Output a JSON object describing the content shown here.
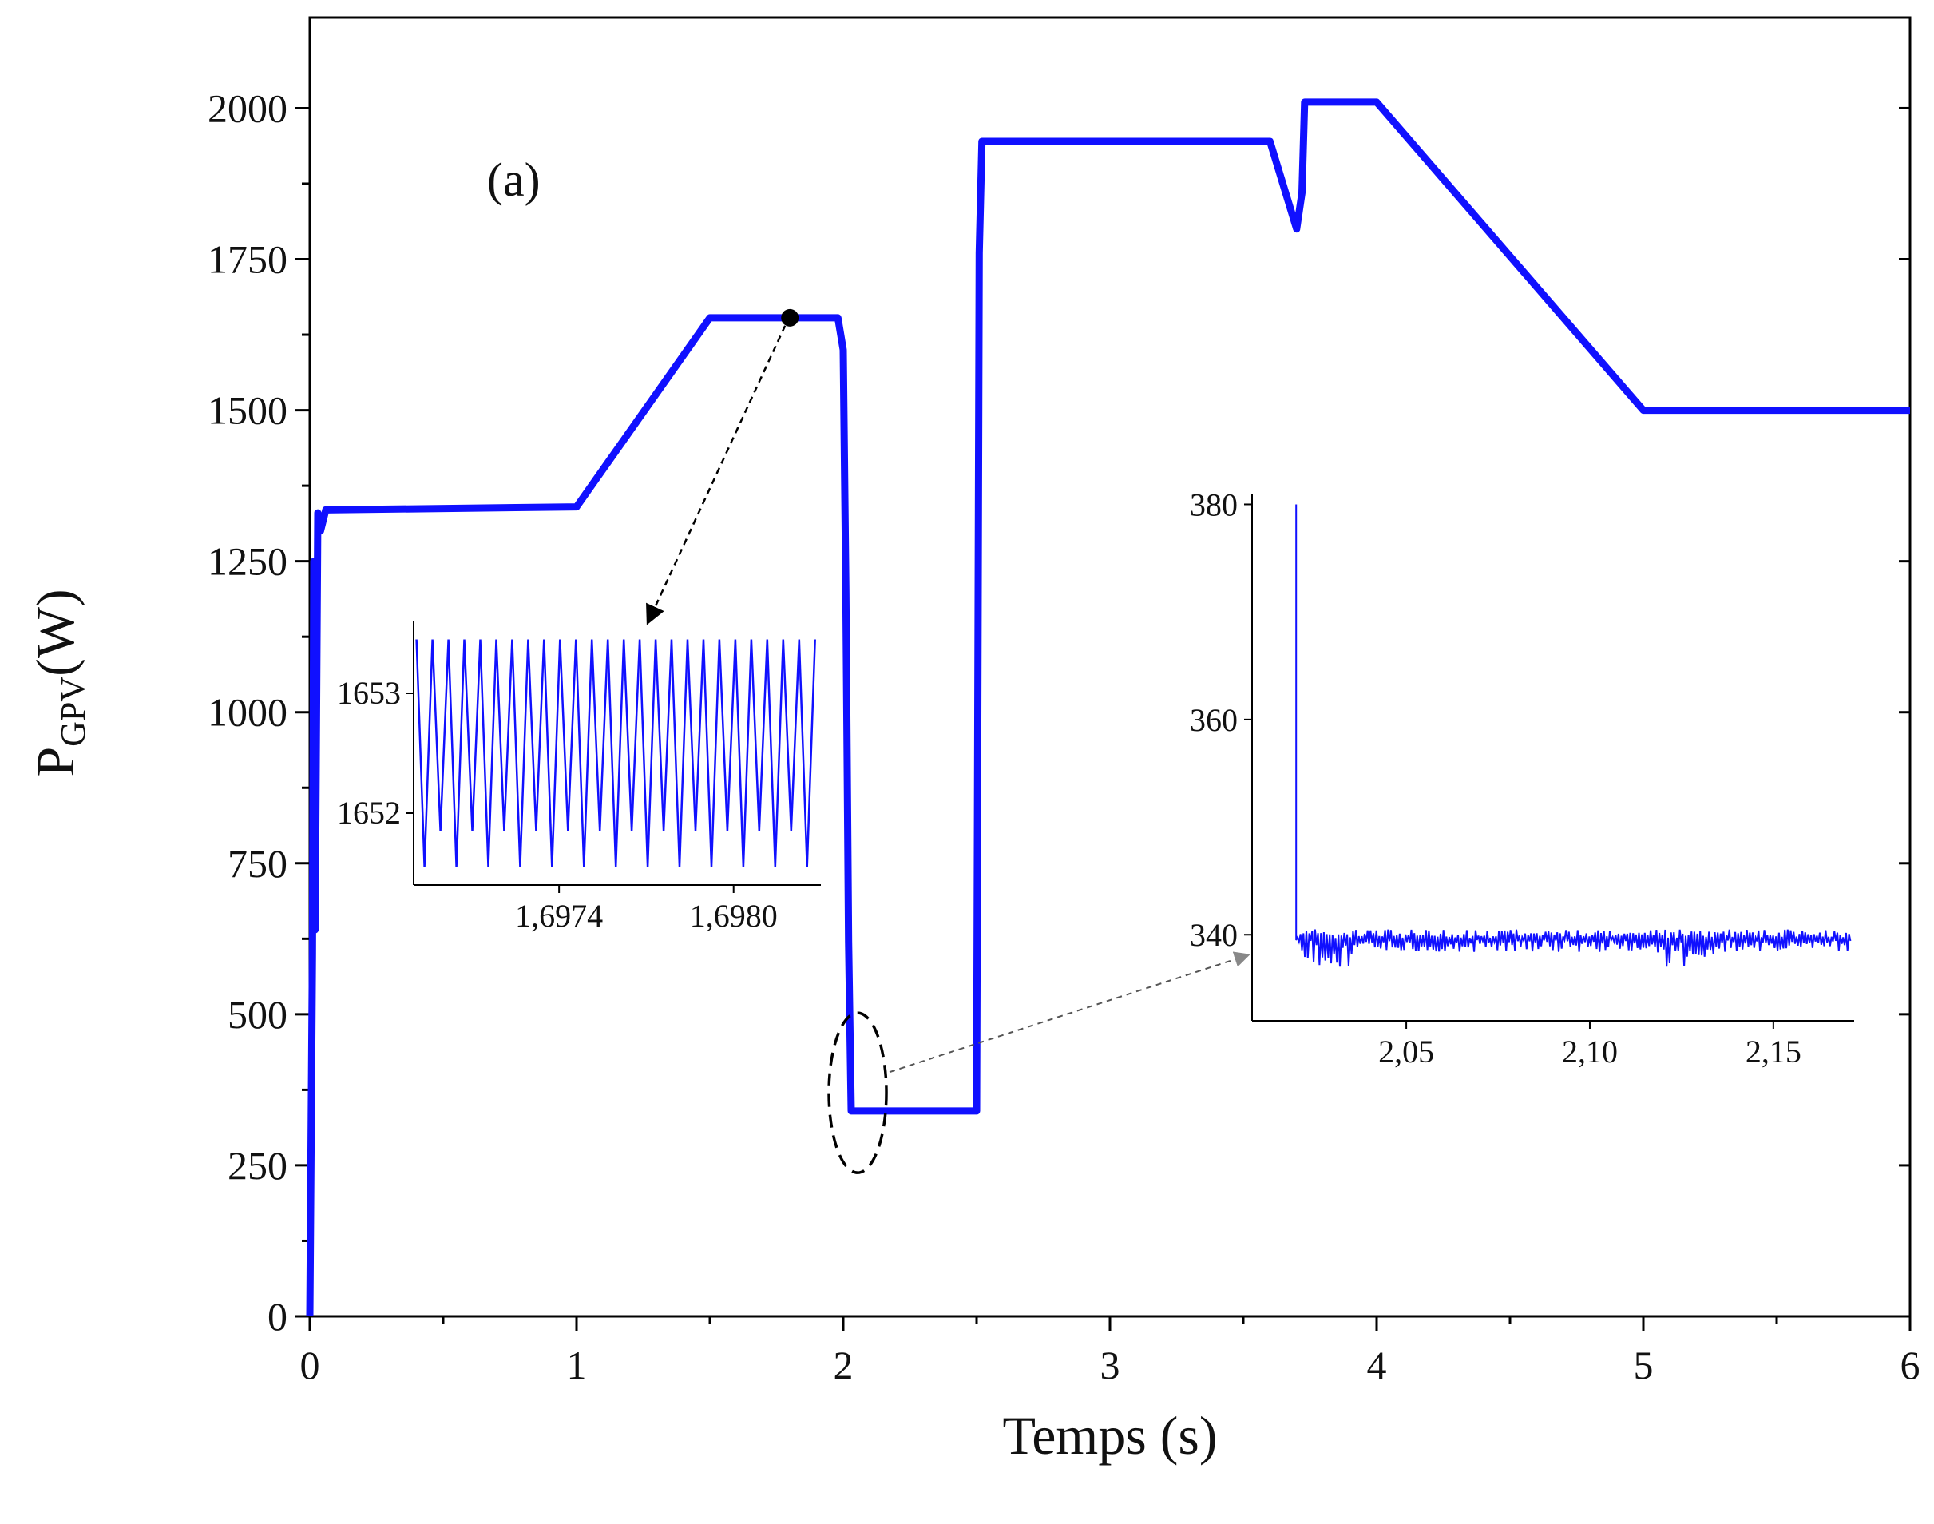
{
  "chart_data": {
    "type": "line",
    "panel_label": "(a)",
    "xlabel": "Temps (s)",
    "ylabel": {
      "base": "P",
      "subscript": "GPV",
      "unit": "(W)"
    },
    "xlim": [
      0,
      6
    ],
    "ylim": [
      0,
      2150
    ],
    "xticks": [
      0,
      1,
      2,
      3,
      4,
      5,
      6
    ],
    "yticks": [
      0,
      250,
      500,
      750,
      1000,
      1250,
      1500,
      1750,
      2000
    ],
    "colors": {
      "line": "#1010ff",
      "axis": "#000000",
      "marker": "#000000",
      "callout": "#555555"
    },
    "series": [
      {
        "name": "P_GPV",
        "points": [
          [
            0.0,
            0
          ],
          [
            0.01,
            600
          ],
          [
            0.015,
            1250
          ],
          [
            0.02,
            640
          ],
          [
            0.03,
            1330
          ],
          [
            0.04,
            1300
          ],
          [
            0.06,
            1335
          ],
          [
            1.0,
            1340
          ],
          [
            1.5,
            1653
          ],
          [
            1.98,
            1653
          ],
          [
            2.0,
            1600
          ],
          [
            2.01,
            1200
          ],
          [
            2.02,
            620
          ],
          [
            2.03,
            340
          ],
          [
            2.5,
            340
          ],
          [
            2.51,
            1760
          ],
          [
            2.52,
            1945
          ],
          [
            3.6,
            1945
          ],
          [
            3.7,
            1800
          ],
          [
            3.72,
            1860
          ],
          [
            3.73,
            2010
          ],
          [
            4.0,
            2010
          ],
          [
            5.0,
            1500
          ],
          [
            6.0,
            1500
          ]
        ]
      }
    ],
    "annotations": [
      {
        "type": "marker",
        "x": 1.8,
        "y": 1653,
        "description": "dot at steady-state peak linked to inset 1"
      },
      {
        "type": "ellipse",
        "x": 2.03,
        "y": 370,
        "description": "dashed circle around step drop linked to inset 2"
      }
    ],
    "insets": [
      {
        "id": "inset-left",
        "xlim": [
          1.6969,
          1.6983
        ],
        "ylim": [
          1651.4,
          1653.6
        ],
        "xticks": [
          1.6974,
          1.698
        ],
        "xtick_labels": [
          "1,6974",
          "1,6980"
        ],
        "yticks": [
          1652,
          1653
        ],
        "ytick_labels": [
          "1652",
          "1653"
        ],
        "oscillation": {
          "low": 1651.85,
          "high": 1653.45,
          "cycles": 25,
          "low_dips": [
            1651.55,
            1651.85
          ]
        }
      },
      {
        "id": "inset-right",
        "xlim": [
          2.008,
          2.172
        ],
        "ylim": [
          332,
          381
        ],
        "xticks": [
          2.05,
          2.1,
          2.15
        ],
        "xtick_labels": [
          "2,05",
          "2,10",
          "2,15"
        ],
        "yticks": [
          340,
          360,
          380
        ],
        "ytick_labels": [
          "340",
          "360",
          "380"
        ],
        "spike": {
          "x": 2.02,
          "y_top": 380,
          "y_steady": 339.5
        },
        "noise_band": [
          337,
          340.5
        ]
      }
    ]
  }
}
